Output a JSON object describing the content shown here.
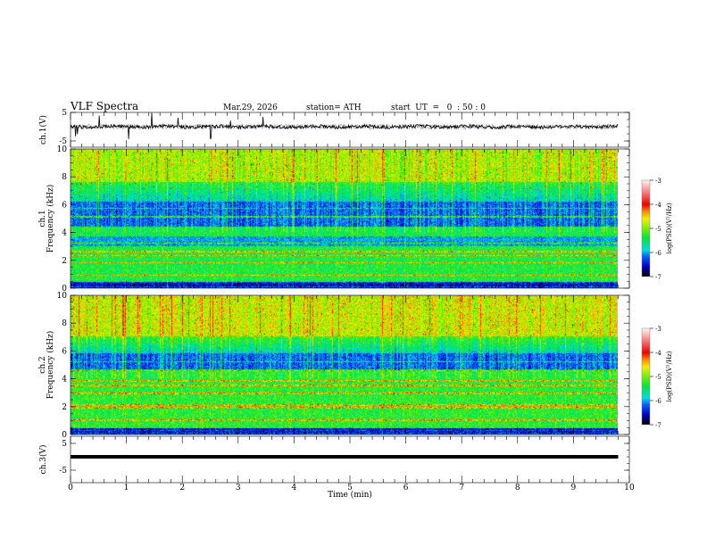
{
  "header": {
    "title": "VLF  Spectra",
    "date": "Mar.29, 2026",
    "station": "station= ATH",
    "start_ut": "start  UT  =   0  : 50 : 0"
  },
  "colors": {
    "axis": "#000000",
    "waveform": "#000000"
  },
  "chart_data": [
    {
      "type": "line",
      "name": "ch1-waveform",
      "ylabel": "ch.1(V)",
      "ylim": [
        -5,
        5
      ],
      "yticks": [
        "5",
        "-5"
      ],
      "xlim": [
        0,
        10
      ],
      "data_extent_min": 9.8,
      "description_values": {
        "baseline": 0,
        "noise_amplitude": 0.6
      }
    },
    {
      "type": "heatmap",
      "name": "ch1-spectrogram",
      "ylabel_line1": "ch.1",
      "ylabel_line2": "Frequency (kHz)",
      "ylim": [
        0,
        10
      ],
      "yticks": [
        "0",
        "2",
        "4",
        "6",
        "8",
        "10"
      ],
      "xlim": [
        0,
        10
      ],
      "colorbar": {
        "label": "log(PSD)(V²/Hz)",
        "range": [
          -7,
          -3
        ],
        "ticks": [
          "-3",
          "-4",
          "-5",
          "-6",
          "-7"
        ]
      }
    },
    {
      "type": "heatmap",
      "name": "ch2-spectrogram",
      "ylabel_line1": "ch.2",
      "ylabel_line2": "Frequency (kHz)",
      "ylim": [
        0,
        10
      ],
      "yticks": [
        "0",
        "2",
        "4",
        "6",
        "8",
        "10"
      ],
      "xlim": [
        0,
        10
      ],
      "colorbar": {
        "label": "log(PSD)(V²/Hz)",
        "range": [
          -7,
          -3
        ],
        "ticks": [
          "-3",
          "-4",
          "-5",
          "-6",
          "-7"
        ]
      }
    },
    {
      "type": "line",
      "name": "ch3-waveform",
      "ylabel": "ch.3(V)",
      "ylim": [
        -5,
        5
      ],
      "yticks": [
        "5",
        "-5"
      ],
      "xlim": [
        0,
        10
      ],
      "description_values": {
        "baseline": 0
      }
    }
  ],
  "xaxis": {
    "label": "Time  (min)",
    "ticks": [
      "0",
      "1",
      "2",
      "3",
      "4",
      "5",
      "6",
      "7",
      "8",
      "9",
      "10"
    ]
  }
}
